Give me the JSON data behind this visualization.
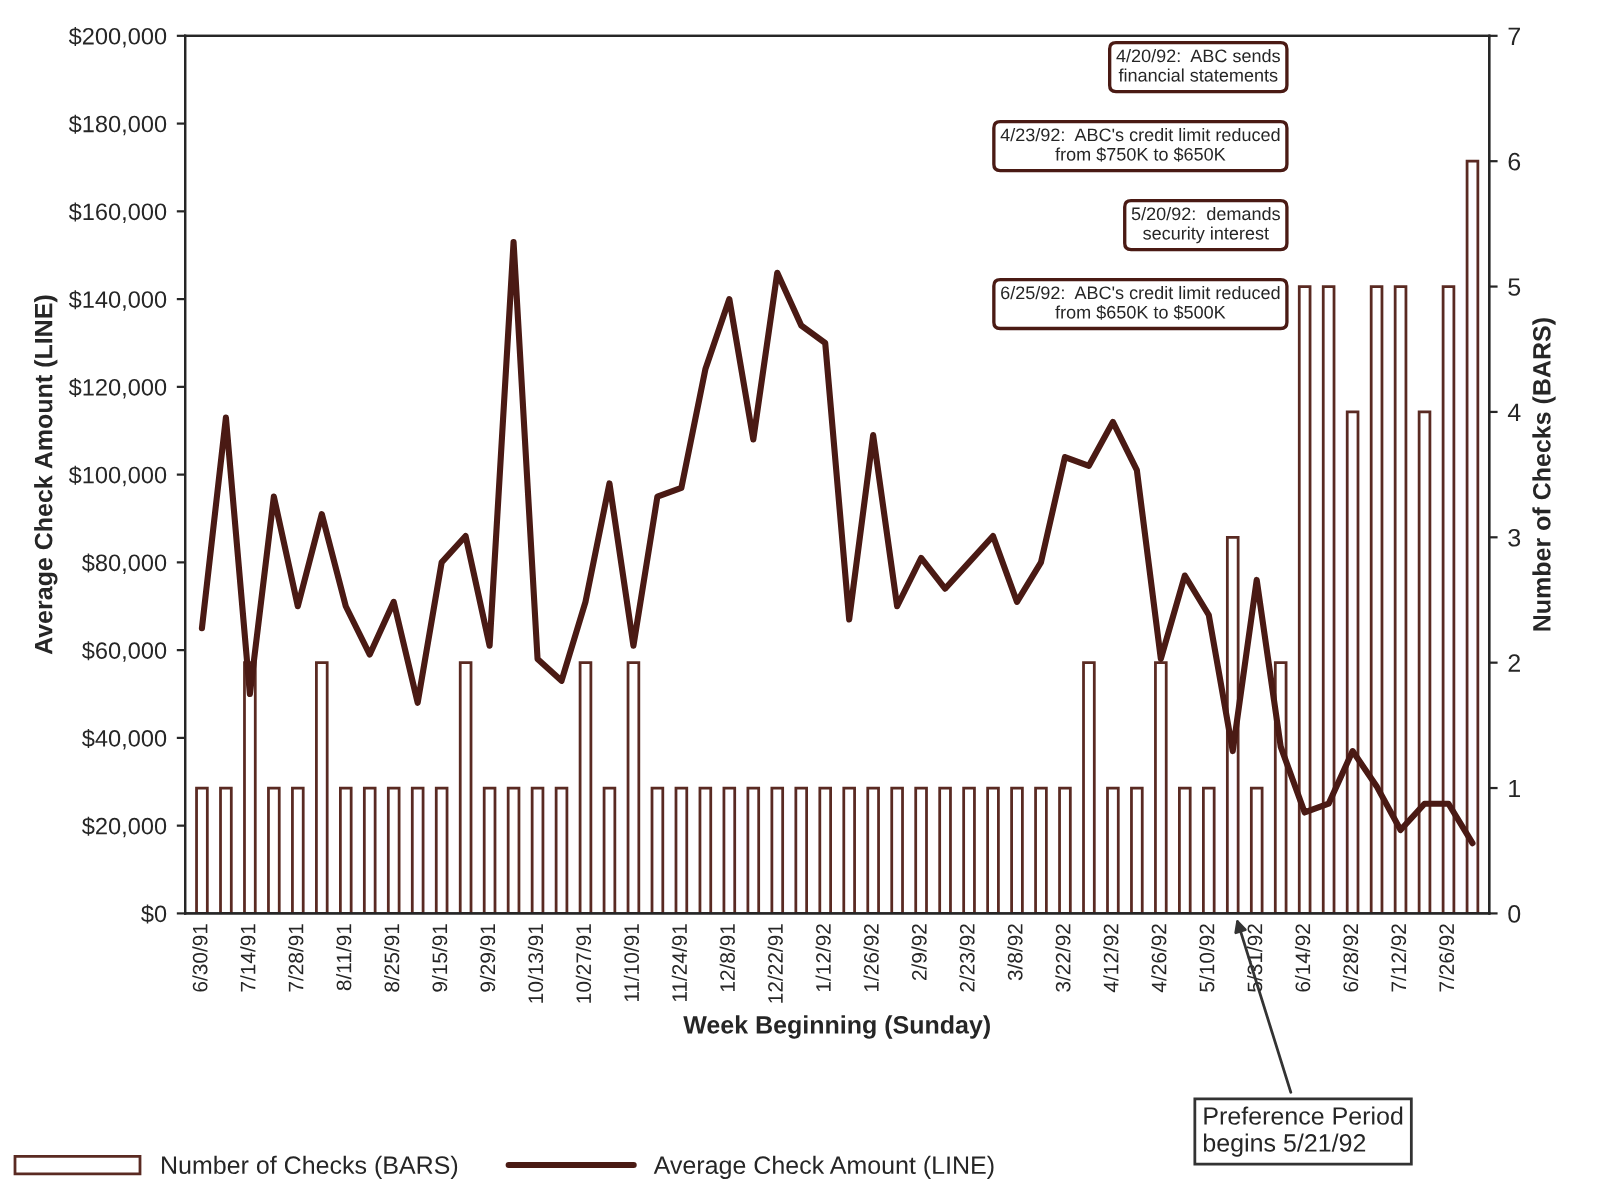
{
  "chart_data": {
    "type": "bar",
    "xlabel": "Week Beginning (Sunday)",
    "ylabel": "Average Check Amount (LINE)",
    "y2label": "Number of Checks (BARS)",
    "categories": [
      "6/30/91",
      null,
      "7/14/91",
      null,
      "7/28/91",
      null,
      "8/11/91",
      null,
      "8/25/91",
      null,
      "9/15/91",
      null,
      "9/29/91",
      null,
      "10/13/91",
      null,
      "10/27/91",
      null,
      "11/10/91",
      null,
      "11/24/91",
      null,
      "12/8/91",
      null,
      "12/22/91",
      null,
      "1/12/92",
      null,
      "1/26/92",
      null,
      "2/9/92",
      null,
      "2/23/92",
      null,
      "3/8/92",
      null,
      "3/22/92",
      null,
      "4/12/92",
      null,
      "4/26/92",
      null,
      "5/10/92",
      null,
      "5/31/92",
      null,
      "6/14/92",
      null,
      "6/28/92",
      null,
      "7/12/92",
      null,
      "7/26/92",
      null
    ],
    "series": [
      {
        "name": "Number of Checks (BARS)",
        "axis": "y2",
        "color": "#5a2a22",
        "values": [
          1,
          1,
          2,
          1,
          1,
          2,
          1,
          1,
          1,
          1,
          1,
          2,
          1,
          1,
          1,
          1,
          2,
          1,
          2,
          1,
          1,
          1,
          1,
          1,
          1,
          1,
          1,
          1,
          1,
          1,
          1,
          1,
          1,
          1,
          1,
          1,
          1,
          2,
          1,
          1,
          2,
          1,
          1,
          3,
          1,
          2,
          5,
          5,
          4,
          5,
          5,
          4,
          5,
          6
        ]
      },
      {
        "name": "Average Check Amount (LINE)",
        "type": "line",
        "axis": "y",
        "color": "#4a1a14",
        "values": [
          65000,
          113000,
          50000,
          95000,
          70000,
          91000,
          70000,
          59000,
          71000,
          48000,
          80000,
          86000,
          61000,
          153000,
          58000,
          53000,
          71000,
          98000,
          61000,
          95000,
          97000,
          124000,
          140000,
          108000,
          146000,
          134000,
          130000,
          67000,
          109000,
          70000,
          81000,
          74000,
          80000,
          86000,
          71000,
          80000,
          104000,
          102000,
          112000,
          101000,
          58000,
          77000,
          68000,
          37000,
          76000,
          38000,
          23000,
          25000,
          37000,
          29000,
          19000,
          25000,
          25000,
          16000
        ]
      }
    ],
    "ylim": [
      0,
      200000
    ],
    "yticks": [
      {
        "value": 0,
        "label": "$0"
      },
      {
        "value": 20000,
        "label": "$20,000"
      },
      {
        "value": 40000,
        "label": "$40,000"
      },
      {
        "value": 60000,
        "label": "$60,000"
      },
      {
        "value": 80000,
        "label": "$80,000"
      },
      {
        "value": 100000,
        "label": "$100,000"
      },
      {
        "value": 120000,
        "label": "$120,000"
      },
      {
        "value": 140000,
        "label": "$140,000"
      },
      {
        "value": 160000,
        "label": "$160,000"
      },
      {
        "value": 180000,
        "label": "$180,000"
      },
      {
        "value": 200000,
        "label": "$200,000"
      }
    ],
    "y2lim": [
      0,
      7
    ],
    "y2ticks": [
      0,
      1,
      2,
      3,
      4,
      5,
      6,
      7
    ],
    "legend": "bottom",
    "grid": false,
    "annotations": [
      "4/20/92:  ABC sends\nfinancial statements",
      "4/23/92:  ABC's credit limit reduced\nfrom $750K to $650K",
      "5/20/92:  demands\nsecurity interest",
      "6/25/92:  ABC's credit limit reduced\nfrom $650K to $500K",
      "Preference Period\nbegins 5/21/92"
    ]
  }
}
